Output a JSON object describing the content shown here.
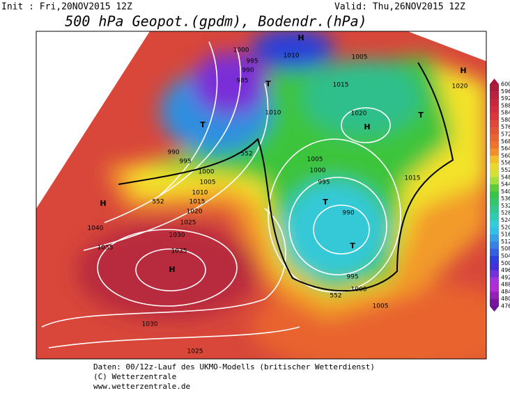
{
  "header": {
    "init": "Init : Fri,20NOV2015 12Z",
    "valid": "Valid: Thu,26NOV2015 12Z",
    "title": "500 hPa Geopot.(gpdm), Bodendr.(hPa)"
  },
  "colorbar": {
    "labels": [
      600,
      596,
      592,
      588,
      584,
      580,
      576,
      572,
      568,
      564,
      560,
      556,
      552,
      548,
      544,
      540,
      536,
      532,
      528,
      524,
      520,
      516,
      512,
      508,
      504,
      500,
      496,
      492,
      488,
      484,
      480,
      476
    ]
  },
  "map": {
    "labels": [
      "H",
      "1000",
      "995",
      "990",
      "985",
      "T",
      "1010",
      "1005",
      "1015",
      "1020",
      "H",
      "T",
      "H",
      "1020",
      "T",
      "1010",
      "990",
      "995",
      "1000",
      "1005",
      "1010",
      "1015",
      "1020",
      "1025",
      "1030",
      "1035",
      "H",
      "1040",
      "1035",
      "H",
      "1005",
      "1000",
      "995",
      "T",
      "990",
      "T",
      "995",
      "1000",
      "1005",
      "1015",
      "1030",
      "1025",
      "552",
      "552",
      "552"
    ]
  },
  "footer": {
    "lines": [
      "Daten: 00/12z-Lauf des UKMO-Modells (britischer Wetterdienst)",
      "(C) Wetterzentrale",
      "www.wetterzentrale.de"
    ]
  }
}
